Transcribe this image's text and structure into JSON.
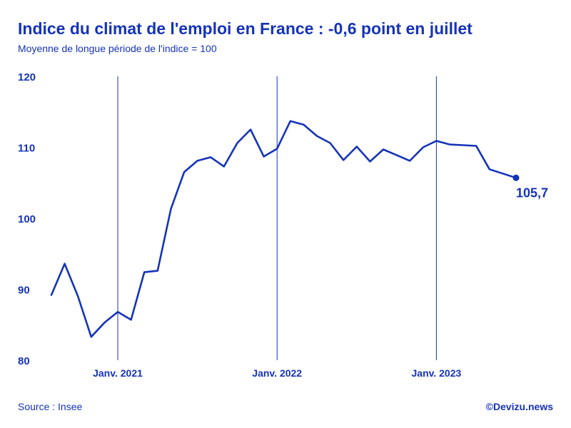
{
  "header": {
    "title": "Indice du climat de l'emploi en France : -0,6 point en juillet",
    "subtitle": "Moyenne de longue période de l'indice = 100"
  },
  "footer": {
    "source": "Source : Insee",
    "brand": "©Devizu.news"
  },
  "colors": {
    "accent": "#1533b8",
    "line": "#1533b8"
  },
  "chart_data": {
    "type": "line",
    "title": "Indice du climat de l'emploi en France : -0,6 point en juillet",
    "subtitle": "Moyenne de longue période de l'indice = 100",
    "xlabel": "",
    "ylabel": "",
    "x_ticks": [
      {
        "label": "Janv. 2021",
        "index": 5
      },
      {
        "label": "Janv. 2022",
        "index": 17
      },
      {
        "label": "Janv. 2023",
        "index": 29
      }
    ],
    "y_ticks": [
      {
        "label": "120",
        "value": 120
      },
      {
        "label": "110",
        "value": 110
      },
      {
        "label": "100",
        "value": 100
      },
      {
        "label": "90",
        "value": 90
      },
      {
        "label": "80",
        "value": 80
      }
    ],
    "ylim": [
      80,
      120
    ],
    "grid": "vertical lines at January of each year",
    "series": [
      {
        "values": [
          89.2,
          93.6,
          89.0,
          83.3,
          85.3,
          86.8,
          85.7,
          92.4,
          92.6,
          101.3,
          106.5,
          108.1,
          108.6,
          107.3,
          110.6,
          112.5,
          108.7,
          109.8,
          113.7,
          113.2,
          111.6,
          110.6,
          108.2,
          110.1,
          108.0,
          109.7,
          108.9,
          108.1,
          110.0,
          110.9,
          110.4,
          110.3,
          110.2,
          106.9,
          106.3,
          105.7
        ]
      }
    ],
    "last_value_label": "105,7"
  }
}
